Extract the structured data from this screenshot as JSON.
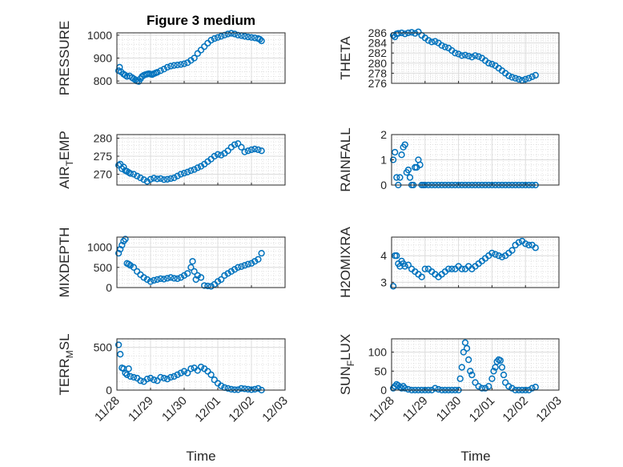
{
  "figure_title": "Figure 3 medium",
  "x_axis_label": "Time",
  "x_tick_labels": [
    "11/28",
    "11/29",
    "11/30",
    "12/01",
    "12/02",
    "12/03"
  ],
  "marker_color": "#0072BD",
  "chart_data": [
    {
      "type": "scatter",
      "title": "Figure 3 medium",
      "ylabel": "PRESSURE",
      "ylabel_main": "PRESSURE",
      "ylabel_sub": "",
      "ylabel_tail": "",
      "ylim": [
        790,
        1010
      ],
      "yticks": [
        800,
        900,
        1000
      ],
      "xlim": [
        0,
        5
      ],
      "x": [
        0.05,
        0.08,
        0.12,
        0.2,
        0.25,
        0.3,
        0.38,
        0.45,
        0.5,
        0.55,
        0.6,
        0.65,
        0.7,
        0.75,
        0.8,
        0.85,
        0.9,
        0.95,
        1.0,
        1.05,
        1.1,
        1.15,
        1.2,
        1.3,
        1.4,
        1.5,
        1.6,
        1.7,
        1.8,
        1.9,
        2.0,
        2.1,
        2.2,
        2.3,
        2.4,
        2.5,
        2.6,
        2.7,
        2.8,
        2.9,
        3.0,
        3.1,
        3.2,
        3.3,
        3.4,
        3.5,
        3.6,
        3.7,
        3.8,
        3.9,
        4.0,
        4.1,
        4.2,
        4.25,
        4.3
      ],
      "values": [
        845,
        860,
        840,
        830,
        825,
        820,
        822,
        815,
        810,
        805,
        800,
        798,
        810,
        820,
        825,
        828,
        830,
        832,
        830,
        828,
        832,
        835,
        838,
        845,
        852,
        860,
        865,
        868,
        870,
        872,
        875,
        880,
        890,
        900,
        920,
        935,
        950,
        965,
        978,
        985,
        990,
        995,
        1000,
        1005,
        1008,
        1005,
        1000,
        998,
        995,
        992,
        990,
        988,
        985,
        982,
        975
      ]
    },
    {
      "type": "scatter",
      "title": "",
      "ylabel": "THETA",
      "ylabel_main": "THETA",
      "ylabel_sub": "",
      "ylabel_tail": "",
      "ylim": [
        276,
        286
      ],
      "yticks": [
        276,
        278,
        280,
        282,
        284,
        286
      ],
      "xlim": [
        0,
        5
      ],
      "x": [
        0.05,
        0.1,
        0.15,
        0.2,
        0.3,
        0.4,
        0.5,
        0.6,
        0.7,
        0.8,
        0.9,
        1.0,
        1.1,
        1.2,
        1.3,
        1.4,
        1.5,
        1.6,
        1.7,
        1.8,
        1.9,
        2.0,
        2.1,
        2.2,
        2.3,
        2.4,
        2.5,
        2.6,
        2.7,
        2.8,
        2.9,
        3.0,
        3.1,
        3.2,
        3.3,
        3.4,
        3.5,
        3.6,
        3.7,
        3.8,
        3.9,
        4.0,
        4.1,
        4.2,
        4.3
      ],
      "values": [
        285.5,
        285.2,
        285.8,
        285.9,
        286.0,
        285.8,
        286.0,
        286.1,
        285.9,
        286.2,
        285.5,
        285.0,
        284.5,
        284.2,
        284.3,
        284.0,
        283.5,
        283.2,
        283.0,
        282.5,
        282.0,
        281.8,
        281.5,
        281.6,
        281.4,
        281.2,
        281.5,
        281.3,
        281.0,
        280.5,
        280.0,
        279.8,
        279.5,
        279.0,
        278.5,
        278.0,
        277.5,
        277.2,
        277.0,
        276.8,
        276.6,
        276.8,
        277.0,
        277.3,
        277.6
      ]
    },
    {
      "type": "scatter",
      "title": "",
      "ylabel": "AIR_TEMP",
      "ylabel_main": "AIR",
      "ylabel_sub": "T",
      "ylabel_tail": "EMP",
      "ylim": [
        267,
        281
      ],
      "yticks": [
        270,
        275,
        280
      ],
      "xlim": [
        0,
        5
      ],
      "x": [
        0.05,
        0.1,
        0.15,
        0.2,
        0.25,
        0.3,
        0.35,
        0.4,
        0.5,
        0.6,
        0.7,
        0.8,
        0.9,
        1.0,
        1.1,
        1.2,
        1.3,
        1.4,
        1.5,
        1.6,
        1.7,
        1.8,
        1.9,
        2.0,
        2.1,
        2.2,
        2.3,
        2.4,
        2.5,
        2.6,
        2.7,
        2.8,
        2.9,
        3.0,
        3.1,
        3.2,
        3.3,
        3.4,
        3.5,
        3.6,
        3.7,
        3.8,
        3.9,
        4.0,
        4.1,
        4.2,
        4.3
      ],
      "values": [
        272.5,
        272.8,
        271.5,
        272.0,
        271.0,
        270.8,
        270.5,
        270.2,
        270.0,
        269.5,
        269.0,
        268.5,
        268.0,
        268.6,
        268.9,
        268.7,
        268.8,
        268.5,
        268.6,
        268.8,
        269.0,
        269.5,
        270.0,
        270.3,
        270.6,
        271.0,
        271.3,
        271.8,
        272.2,
        272.8,
        273.5,
        274.2,
        275.0,
        275.5,
        275.3,
        275.8,
        276.5,
        277.5,
        278.2,
        278.5,
        277.5,
        276.2,
        276.5,
        276.8,
        277.0,
        276.8,
        276.5
      ]
    },
    {
      "type": "scatter",
      "title": "",
      "ylabel": "RAINFALL",
      "ylabel_main": "RAINFALL",
      "ylabel_sub": "",
      "ylabel_tail": "",
      "ylim": [
        0,
        2
      ],
      "yticks": [
        0,
        1,
        2
      ],
      "xlim": [
        0,
        5
      ],
      "x": [
        0.05,
        0.1,
        0.15,
        0.2,
        0.25,
        0.3,
        0.35,
        0.4,
        0.45,
        0.5,
        0.55,
        0.6,
        0.65,
        0.7,
        0.75,
        0.8,
        0.85,
        0.9,
        0.95,
        1.0,
        1.1,
        1.2,
        1.3,
        1.4,
        1.5,
        1.6,
        1.7,
        1.8,
        1.9,
        2.0,
        2.1,
        2.2,
        2.3,
        2.4,
        2.5,
        2.6,
        2.7,
        2.8,
        2.9,
        3.0,
        3.1,
        3.2,
        3.3,
        3.4,
        3.5,
        3.6,
        3.7,
        3.8,
        3.9,
        4.0,
        4.1,
        4.2,
        4.3
      ],
      "values": [
        1.0,
        1.3,
        0.3,
        0.0,
        0.3,
        1.2,
        1.5,
        1.6,
        0.5,
        0.6,
        0.3,
        0.0,
        0.0,
        0.7,
        0.7,
        1.0,
        0.8,
        0.0,
        0.0,
        0.0,
        0.0,
        0.0,
        0.0,
        0.0,
        0.0,
        0.0,
        0.0,
        0.0,
        0.0,
        0.0,
        0.0,
        0.0,
        0.0,
        0.0,
        0.0,
        0.0,
        0.0,
        0.0,
        0.0,
        0.0,
        0.0,
        0.0,
        0.0,
        0.0,
        0.0,
        0.0,
        0.0,
        0.0,
        0.0,
        0.0,
        0.0,
        0.0,
        0.0
      ]
    },
    {
      "type": "scatter",
      "title": "",
      "ylabel": "MIXDEPTH",
      "ylabel_main": "MIXDEPTH",
      "ylabel_sub": "",
      "ylabel_tail": "",
      "ylim": [
        0,
        1250
      ],
      "yticks": [
        0,
        500,
        1000
      ],
      "xlim": [
        0,
        5
      ],
      "x": [
        0.05,
        0.1,
        0.15,
        0.2,
        0.25,
        0.3,
        0.35,
        0.4,
        0.5,
        0.6,
        0.7,
        0.8,
        0.9,
        1.0,
        1.1,
        1.2,
        1.3,
        1.4,
        1.5,
        1.6,
        1.7,
        1.8,
        1.9,
        2.0,
        2.1,
        2.2,
        2.25,
        2.3,
        2.35,
        2.4,
        2.5,
        2.6,
        2.7,
        2.8,
        2.9,
        3.0,
        3.1,
        3.2,
        3.3,
        3.4,
        3.5,
        3.6,
        3.7,
        3.8,
        3.9,
        4.0,
        4.1,
        4.2,
        4.3
      ],
      "values": [
        850,
        950,
        1050,
        1150,
        1200,
        600,
        580,
        550,
        500,
        400,
        320,
        250,
        200,
        150,
        180,
        200,
        220,
        210,
        230,
        250,
        230,
        220,
        250,
        300,
        350,
        500,
        650,
        400,
        200,
        300,
        250,
        50,
        40,
        30,
        80,
        150,
        200,
        300,
        350,
        400,
        450,
        500,
        520,
        550,
        580,
        600,
        650,
        700,
        850
      ]
    },
    {
      "type": "scatter",
      "title": "",
      "ylabel": "H2OMIXRA",
      "ylabel_main": "H2OMIXRA",
      "ylabel_sub": "",
      "ylabel_tail": "",
      "ylim": [
        2.8,
        4.7
      ],
      "yticks": [
        3,
        4
      ],
      "xlim": [
        0,
        5
      ],
      "x": [
        0.05,
        0.1,
        0.15,
        0.2,
        0.25,
        0.3,
        0.35,
        0.4,
        0.5,
        0.6,
        0.7,
        0.8,
        0.9,
        1.0,
        1.1,
        1.2,
        1.3,
        1.4,
        1.5,
        1.6,
        1.7,
        1.8,
        1.9,
        2.0,
        2.1,
        2.2,
        2.3,
        2.4,
        2.5,
        2.6,
        2.7,
        2.8,
        2.9,
        3.0,
        3.1,
        3.2,
        3.3,
        3.4,
        3.5,
        3.6,
        3.7,
        3.8,
        3.9,
        4.0,
        4.1,
        4.2,
        4.3
      ],
      "values": [
        2.85,
        4.0,
        4.0,
        3.7,
        3.6,
        3.8,
        3.7,
        3.6,
        3.65,
        3.5,
        3.4,
        3.3,
        3.2,
        3.5,
        3.5,
        3.4,
        3.3,
        3.2,
        3.3,
        3.4,
        3.5,
        3.5,
        3.5,
        3.6,
        3.5,
        3.5,
        3.6,
        3.5,
        3.6,
        3.7,
        3.8,
        3.9,
        4.0,
        4.1,
        4.05,
        4.0,
        3.95,
        4.0,
        4.1,
        4.2,
        4.4,
        4.5,
        4.55,
        4.45,
        4.4,
        4.4,
        4.3
      ]
    },
    {
      "type": "scatter",
      "title": "",
      "ylabel": "TERR_MSL",
      "ylabel_main": "TERR",
      "ylabel_sub": "M",
      "ylabel_tail": "SL",
      "ylim": [
        0,
        600
      ],
      "yticks": [
        0,
        500
      ],
      "xlim": [
        0,
        5
      ],
      "x": [
        0.05,
        0.1,
        0.15,
        0.2,
        0.25,
        0.3,
        0.35,
        0.4,
        0.5,
        0.6,
        0.7,
        0.8,
        0.9,
        1.0,
        1.1,
        1.2,
        1.3,
        1.4,
        1.5,
        1.6,
        1.7,
        1.8,
        1.9,
        2.0,
        2.1,
        2.2,
        2.3,
        2.4,
        2.5,
        2.6,
        2.7,
        2.8,
        2.9,
        3.0,
        3.1,
        3.2,
        3.3,
        3.4,
        3.5,
        3.6,
        3.7,
        3.8,
        3.9,
        4.0,
        4.1,
        4.2,
        4.3
      ],
      "values": [
        530,
        420,
        260,
        250,
        200,
        180,
        250,
        160,
        150,
        140,
        110,
        100,
        130,
        140,
        120,
        110,
        150,
        140,
        130,
        150,
        160,
        180,
        200,
        220,
        200,
        250,
        260,
        230,
        270,
        250,
        220,
        180,
        120,
        80,
        50,
        30,
        20,
        10,
        5,
        5,
        20,
        15,
        10,
        5,
        10,
        20,
        0
      ]
    },
    {
      "type": "scatter",
      "title": "",
      "ylabel": "SUN_FLUX",
      "ylabel_main": "SUN",
      "ylabel_sub": "F",
      "ylabel_tail": "LUX",
      "ylim": [
        0,
        135
      ],
      "yticks": [
        0,
        50,
        100
      ],
      "xlim": [
        0,
        5
      ],
      "x": [
        0.05,
        0.1,
        0.15,
        0.2,
        0.25,
        0.3,
        0.35,
        0.4,
        0.5,
        0.6,
        0.7,
        0.8,
        0.9,
        1.0,
        1.1,
        1.2,
        1.3,
        1.4,
        1.5,
        1.6,
        1.7,
        1.8,
        1.9,
        2.0,
        2.05,
        2.1,
        2.15,
        2.2,
        2.25,
        2.3,
        2.35,
        2.4,
        2.5,
        2.6,
        2.7,
        2.8,
        2.9,
        3.0,
        3.05,
        3.1,
        3.15,
        3.2,
        3.25,
        3.3,
        3.35,
        3.4,
        3.5,
        3.6,
        3.7,
        3.8,
        3.9,
        4.0,
        4.1,
        4.2,
        4.3
      ],
      "values": [
        5,
        10,
        15,
        12,
        8,
        5,
        10,
        5,
        2,
        0,
        0,
        0,
        0,
        0,
        0,
        0,
        5,
        2,
        0,
        0,
        0,
        0,
        0,
        0,
        30,
        60,
        100,
        125,
        110,
        80,
        50,
        40,
        20,
        10,
        5,
        5,
        10,
        30,
        50,
        60,
        75,
        80,
        78,
        60,
        40,
        20,
        10,
        5,
        0,
        0,
        0,
        0,
        0,
        5,
        8
      ]
    }
  ]
}
